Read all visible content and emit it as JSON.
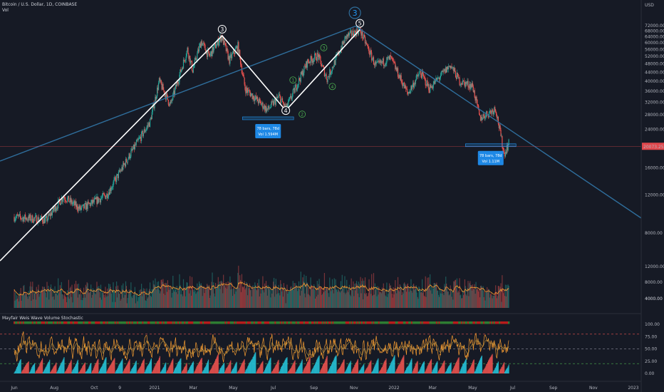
{
  "header": {
    "symbol": "Bitcoin / U.S. Dollar, 1D, COINBASE",
    "vol_label": "Vol",
    "indicator_label": "Mayfair Weis Wave Volume Stochastic"
  },
  "colors": {
    "background": "#161a25",
    "up": "#26a69a",
    "down": "#ef5350",
    "trendline": "#2f6e9c",
    "wave_line": "#ffffff",
    "price_badge": "#e0474c",
    "info_box": "#1e88e5",
    "stoch_fast": "#f59b31",
    "stoch_slow": "#cfa443"
  },
  "chart_data": [
    {
      "type": "candlestick",
      "title": "Bitcoin / U.S. Dollar, 1D, COINBASE",
      "y_scale": "log",
      "ylim": [
        1500,
        90000
      ],
      "y_unit_label": "USD",
      "y_ticks": [
        72000,
        68000,
        64000,
        60000,
        56000,
        52000,
        48000,
        44000,
        40000,
        36000,
        32000,
        28000,
        24000,
        16000,
        12000,
        8000,
        4000
      ],
      "x_ticks": [
        "Jun",
        "Aug",
        "Oct",
        "9",
        "2021",
        "Mar",
        "May",
        "Jul",
        "Sep",
        "Nov",
        "2022",
        "Mar",
        "May",
        "Jul",
        "Sep",
        "Nov",
        "2023"
      ],
      "x_tick_dates": [
        "2020-06-01",
        "2020-08-01",
        "2020-10-01",
        "2020-11-09",
        "2021-01-01",
        "2021-03-01",
        "2021-05-01",
        "2021-07-01",
        "2021-09-01",
        "2021-11-01",
        "2022-01-01",
        "2022-03-01",
        "2022-05-01",
        "2022-07-01",
        "2022-09-01",
        "2022-11-01",
        "2023-01-01"
      ],
      "price_path": [
        {
          "date": "2020-06-01",
          "close": 9500
        },
        {
          "date": "2020-07-20",
          "close": 9200
        },
        {
          "date": "2020-08-15",
          "close": 11800
        },
        {
          "date": "2020-09-10",
          "close": 10300
        },
        {
          "date": "2020-10-20",
          "close": 12000
        },
        {
          "date": "2020-11-25",
          "close": 18500
        },
        {
          "date": "2020-12-25",
          "close": 26000
        },
        {
          "date": "2021-01-08",
          "close": 40000
        },
        {
          "date": "2021-01-25",
          "close": 31000
        },
        {
          "date": "2021-02-20",
          "close": 56000
        },
        {
          "date": "2021-02-28",
          "close": 45000
        },
        {
          "date": "2021-03-13",
          "close": 61000
        },
        {
          "date": "2021-03-25",
          "close": 52000
        },
        {
          "date": "2021-04-13",
          "close": 64500
        },
        {
          "date": "2021-04-25",
          "close": 50000
        },
        {
          "date": "2021-05-08",
          "close": 58000
        },
        {
          "date": "2021-05-19",
          "close": 37000
        },
        {
          "date": "2021-06-22",
          "close": 29500
        },
        {
          "date": "2021-07-10",
          "close": 34000
        },
        {
          "date": "2021-07-20",
          "close": 29800
        },
        {
          "date": "2021-08-22",
          "close": 49000
        },
        {
          "date": "2021-09-07",
          "close": 52500
        },
        {
          "date": "2021-09-21",
          "close": 41000
        },
        {
          "date": "2021-10-20",
          "close": 64000
        },
        {
          "date": "2021-11-10",
          "close": 68900
        },
        {
          "date": "2021-12-04",
          "close": 47000
        },
        {
          "date": "2021-12-27",
          "close": 51000
        },
        {
          "date": "2022-01-22",
          "close": 35000
        },
        {
          "date": "2022-02-10",
          "close": 44000
        },
        {
          "date": "2022-02-24",
          "close": 37000
        },
        {
          "date": "2022-03-28",
          "close": 47500
        },
        {
          "date": "2022-04-11",
          "close": 40000
        },
        {
          "date": "2022-05-01",
          "close": 38000
        },
        {
          "date": "2022-05-12",
          "close": 27000
        },
        {
          "date": "2022-06-05",
          "close": 30000
        },
        {
          "date": "2022-06-18",
          "close": 18500
        },
        {
          "date": "2022-06-26",
          "close": 21000
        }
      ],
      "current_price": "20073.25",
      "wave_points": [
        {
          "label": "3",
          "date": "2021-04-14",
          "price": 64800
        },
        {
          "label": "4",
          "date": "2021-07-20",
          "price": 29300
        },
        {
          "label": "5",
          "date": "2021-11-10",
          "price": 69000
        }
      ],
      "minor_waves": [
        {
          "label": "1",
          "date": "2021-07-31",
          "price": 40500
        },
        {
          "label": "2",
          "date": "2021-08-14",
          "price": 28200
        },
        {
          "label": "3",
          "date": "2021-09-16",
          "price": 57000
        },
        {
          "label": "4",
          "date": "2021-09-29",
          "price": 37800
        }
      ],
      "degree_label": "3",
      "range_boxes": [
        {
          "text": [
            "78 bars, 78d",
            "Vol 1.594M"
          ],
          "date_start": "2021-05-15",
          "date_end": "2021-08-01",
          "price": 27000
        },
        {
          "text": [
            "78 bars, 78d",
            "Vol 1.11M"
          ],
          "date_start": "2022-04-20",
          "date_end": "2022-07-06",
          "price": 20300
        }
      ]
    },
    {
      "type": "bar",
      "title": "Vol",
      "y_ticks": [
        12000,
        8000,
        4000
      ],
      "note": "daily volume bars with moving average"
    },
    {
      "type": "line",
      "title": "Mayfair Weis Wave Volume Stochastic",
      "y_ticks": [
        "100.00",
        "75.00",
        "50.00",
        "25.00",
        "0.00"
      ],
      "ylim": [
        0,
        100
      ],
      "levels": [
        80,
        50,
        20
      ]
    }
  ]
}
